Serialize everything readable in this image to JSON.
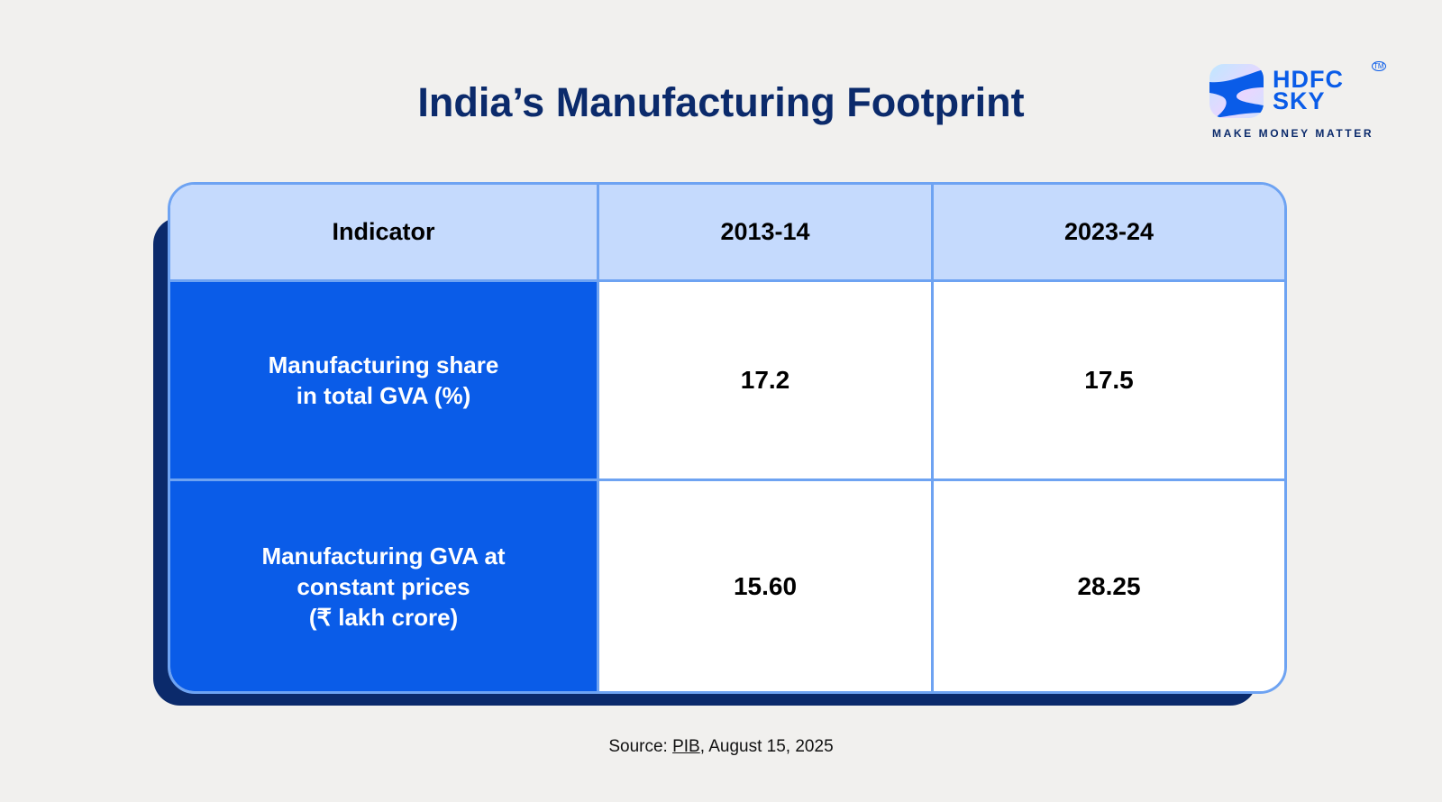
{
  "title": "India’s Manufacturing Footprint",
  "logo": {
    "name": "HDFC SKY",
    "line1": "HDFC",
    "line2": "SKY",
    "tagline": "MAKE MONEY MATTER",
    "tm": "TM"
  },
  "colors": {
    "title": "#0b2a6b",
    "header_bg": "#c5dafd",
    "indicator_bg": "#0a5ce8",
    "border": "#6ea3f2",
    "shadow": "#0b2a6b"
  },
  "chart_data": {
    "type": "table",
    "columns": [
      "Indicator",
      "2013-14",
      "2023-24"
    ],
    "rows": [
      {
        "indicator": "Manufacturing share\nin total GVA (%)",
        "values": [
          "17.2",
          "17.5"
        ]
      },
      {
        "indicator": "Manufacturing GVA at\nconstant prices\n(₹ lakh crore)",
        "values": [
          "15.60",
          "28.25"
        ]
      }
    ]
  },
  "source": {
    "prefix": "Source: ",
    "link": "PIB",
    "suffix": ", August 15, 2025"
  }
}
